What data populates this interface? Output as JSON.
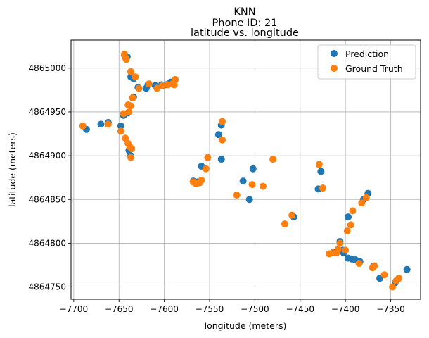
{
  "chart_data": {
    "type": "scatter",
    "suptitle": "KNN",
    "title_line1": "Phone ID: 21",
    "title_line2": "latitude vs. longitude",
    "xlabel": "longitude (meters)",
    "ylabel": "latitude (meters)",
    "xlim": [
      -7703,
      -7317
    ],
    "ylim": [
      4864736,
      4865032
    ],
    "x_ticks": [
      -7700,
      -7650,
      -7600,
      -7550,
      -7500,
      -7450,
      -7400,
      -7350
    ],
    "x_tick_labels": [
      "−7700",
      "−7650",
      "−7600",
      "−7550",
      "−7500",
      "−7450",
      "−7400",
      "−7350"
    ],
    "y_ticks": [
      4864750,
      4864800,
      4864850,
      4864900,
      4864950,
      4865000
    ],
    "y_tick_labels": [
      "4864750",
      "4864800",
      "4864850",
      "4864900",
      "4864950",
      "4865000"
    ],
    "grid": true,
    "legend_location": "top-right",
    "series": [
      {
        "name": "Prediction",
        "color": "#1f77b4",
        "points": [
          [
            -7686,
            4864930
          ],
          [
            -7670,
            4864936
          ],
          [
            -7662,
            4864938
          ],
          [
            -7648,
            4864934
          ],
          [
            -7645,
            4864946
          ],
          [
            -7640,
            4864949
          ],
          [
            -7644,
            4865015
          ],
          [
            -7641,
            4865013
          ],
          [
            -7637,
            4864990
          ],
          [
            -7634,
            4864988
          ],
          [
            -7634,
            4864967
          ],
          [
            -7629,
            4864978
          ],
          [
            -7620,
            4864977
          ],
          [
            -7618,
            4864981
          ],
          [
            -7610,
            4864980
          ],
          [
            -7603,
            4864981
          ],
          [
            -7598,
            4864981
          ],
          [
            -7593,
            4864984
          ],
          [
            -7589,
            4864985
          ],
          [
            -7639,
            4864906
          ],
          [
            -7637,
            4864900
          ],
          [
            -7638,
            4864909
          ],
          [
            -7559,
            4864888
          ],
          [
            -7568,
            4864871
          ],
          [
            -7563,
            4864870
          ],
          [
            -7540,
            4864924
          ],
          [
            -7537,
            4864935
          ],
          [
            -7537,
            4864896
          ],
          [
            -7513,
            4864871
          ],
          [
            -7502,
            4864885
          ],
          [
            -7506,
            4864850
          ],
          [
            -7457,
            4864830
          ],
          [
            -7430,
            4864862
          ],
          [
            -7427,
            4864882
          ],
          [
            -7380,
            4864850
          ],
          [
            -7375,
            4864857
          ],
          [
            -7397,
            4864830
          ],
          [
            -7406,
            4864802
          ],
          [
            -7403,
            4864792
          ],
          [
            -7402,
            4864789
          ],
          [
            -7413,
            4864790
          ],
          [
            -7397,
            4864783
          ],
          [
            -7393,
            4864782
          ],
          [
            -7389,
            4864781
          ],
          [
            -7384,
            4864779
          ],
          [
            -7362,
            4864760
          ],
          [
            -7345,
            4864755
          ],
          [
            -7332,
            4864770
          ],
          [
            -7369,
            4864774
          ]
        ]
      },
      {
        "name": "Ground Truth",
        "color": "#ff7f0e",
        "points": [
          [
            -7690,
            4864934
          ],
          [
            -7662,
            4864936
          ],
          [
            -7648,
            4864928
          ],
          [
            -7645,
            4864948
          ],
          [
            -7640,
            4864958
          ],
          [
            -7637,
            4864957
          ],
          [
            -7644,
            4865016
          ],
          [
            -7643,
            4865012
          ],
          [
            -7642,
            4865010
          ],
          [
            -7637,
            4864996
          ],
          [
            -7632,
            4864990
          ],
          [
            -7635,
            4864966
          ],
          [
            -7628,
            4864977
          ],
          [
            -7617,
            4864982
          ],
          [
            -7608,
            4864977
          ],
          [
            -7602,
            4864980
          ],
          [
            -7596,
            4864981
          ],
          [
            -7590,
            4864983
          ],
          [
            -7588,
            4864987
          ],
          [
            -7589,
            4864981
          ],
          [
            -7643,
            4864920
          ],
          [
            -7640,
            4864914
          ],
          [
            -7638,
            4864910
          ],
          [
            -7636,
            4864908
          ],
          [
            -7637,
            4864898
          ],
          [
            -7639,
            4864950
          ],
          [
            -7552,
            4864898
          ],
          [
            -7554,
            4864885
          ],
          [
            -7568,
            4864870
          ],
          [
            -7565,
            4864868
          ],
          [
            -7561,
            4864869
          ],
          [
            -7559,
            4864872
          ],
          [
            -7536,
            4864939
          ],
          [
            -7536,
            4864918
          ],
          [
            -7520,
            4864855
          ],
          [
            -7503,
            4864867
          ],
          [
            -7491,
            4864865
          ],
          [
            -7480,
            4864896
          ],
          [
            -7467,
            4864822
          ],
          [
            -7459,
            4864832
          ],
          [
            -7429,
            4864890
          ],
          [
            -7425,
            4864863
          ],
          [
            -7392,
            4864837
          ],
          [
            -7394,
            4864821
          ],
          [
            -7398,
            4864814
          ],
          [
            -7382,
            4864846
          ],
          [
            -7377,
            4864852
          ],
          [
            -7406,
            4864800
          ],
          [
            -7408,
            4864793
          ],
          [
            -7414,
            4864789
          ],
          [
            -7418,
            4864788
          ],
          [
            -7410,
            4864789
          ],
          [
            -7400,
            4864792
          ],
          [
            -7385,
            4864777
          ],
          [
            -7370,
            4864772
          ],
          [
            -7368,
            4864774
          ],
          [
            -7357,
            4864764
          ],
          [
            -7348,
            4864750
          ],
          [
            -7344,
            4864757
          ],
          [
            -7341,
            4864760
          ]
        ]
      }
    ]
  }
}
